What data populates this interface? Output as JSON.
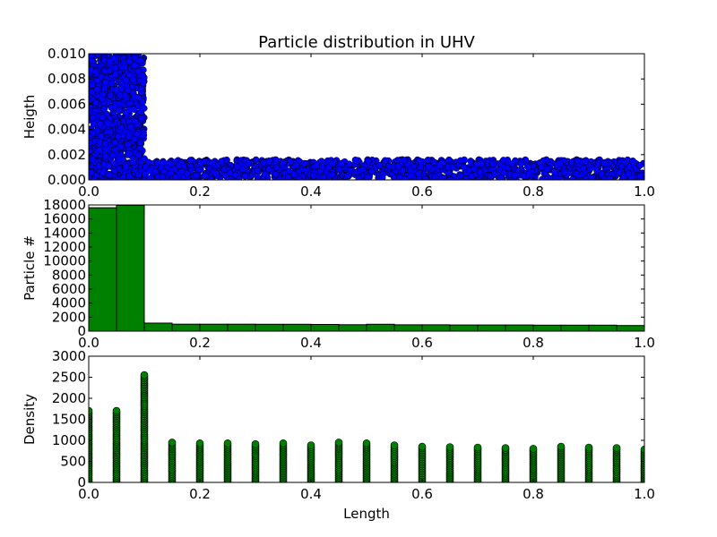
{
  "title": "Particle distribution in UHV",
  "chart_data": [
    {
      "type": "scatter",
      "title": "Particle distribution in UHV",
      "xlabel": "Length",
      "ylabel": "Heigth",
      "xlim": [
        0,
        1
      ],
      "ylim": [
        0,
        0.01
      ],
      "x_ticks": [
        "0.0",
        "0.2",
        "0.4",
        "0.6",
        "0.8",
        "1.0"
      ],
      "y_ticks": [
        "0.000",
        "0.002",
        "0.004",
        "0.006",
        "0.008",
        "0.010"
      ],
      "marker_color": "#0000ff",
      "regions": [
        {
          "x_range": [
            0.0,
            0.1
          ],
          "y_range": [
            0.0,
            0.01
          ]
        },
        {
          "x_range": [
            0.1,
            1.0
          ],
          "y_range": [
            0.0,
            0.0016
          ]
        }
      ]
    },
    {
      "type": "bar",
      "xlabel": "Length",
      "ylabel": "Particle #",
      "xlim": [
        0,
        1
      ],
      "ylim": [
        0,
        18000
      ],
      "x_ticks": [
        "0.0",
        "0.2",
        "0.4",
        "0.6",
        "0.8",
        "1.0"
      ],
      "y_ticks": [
        "0",
        "2000",
        "4000",
        "6000",
        "8000",
        "10000",
        "12000",
        "14000",
        "16000",
        "18000"
      ],
      "bar_color": "#008000",
      "bin_edges": [
        0.0,
        0.05,
        0.1,
        0.15,
        0.2,
        0.25,
        0.3,
        0.35,
        0.4,
        0.45,
        0.5,
        0.55,
        0.6,
        0.65,
        0.7,
        0.75,
        0.8,
        0.85,
        0.9,
        0.95,
        1.0
      ],
      "values": [
        17600,
        17950,
        1150,
        1000,
        1000,
        1000,
        980,
        980,
        960,
        920,
        980,
        900,
        900,
        880,
        880,
        880,
        860,
        860,
        860,
        800
      ]
    },
    {
      "type": "scatter",
      "xlabel": "Length",
      "ylabel": "Density",
      "xlim": [
        0,
        1
      ],
      "ylim": [
        0,
        3000
      ],
      "x_ticks": [
        "0.0",
        "0.2",
        "0.4",
        "0.6",
        "0.8",
        "1.0"
      ],
      "y_ticks": [
        "0",
        "500",
        "1000",
        "1500",
        "2000",
        "2500",
        "3000"
      ],
      "marker_color": "#008000",
      "x": [
        0.0,
        0.05,
        0.1,
        0.15,
        0.2,
        0.25,
        0.3,
        0.35,
        0.4,
        0.45,
        0.5,
        0.55,
        0.6,
        0.65,
        0.7,
        0.75,
        0.8,
        0.85,
        0.9,
        0.95,
        1.0
      ],
      "y_max": [
        1700,
        1700,
        2550,
        950,
        930,
        930,
        910,
        930,
        880,
        950,
        930,
        880,
        850,
        840,
        830,
        820,
        800,
        850,
        830,
        820,
        780
      ]
    }
  ]
}
